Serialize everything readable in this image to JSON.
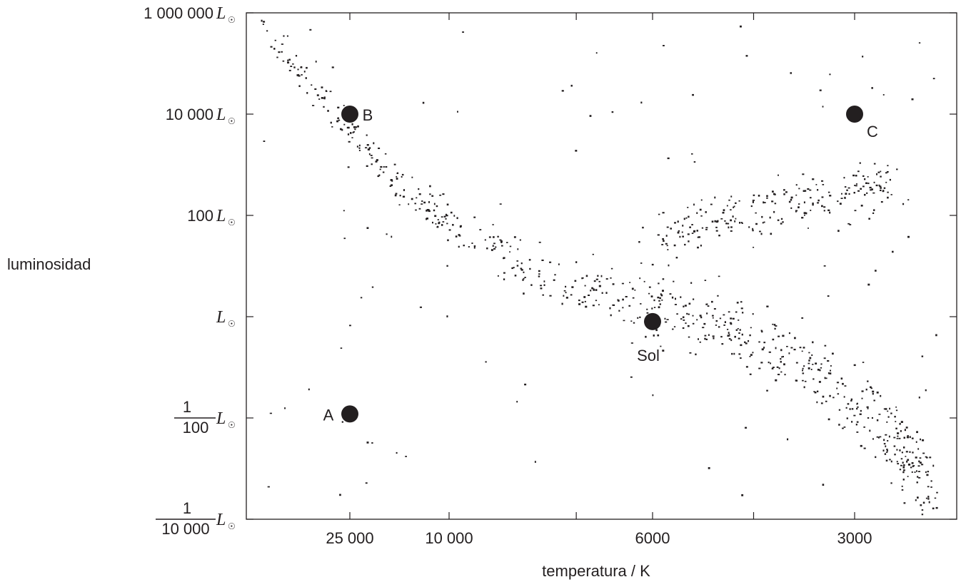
{
  "chart_data": {
    "type": "scatter",
    "xlabel": "temperatura / K",
    "ylabel": "luminosidad",
    "x_scale": "log-reversed",
    "y_scale": "log",
    "xlim": [
      40000,
      2000
    ],
    "ylim": [
      0.0001,
      1000000
    ],
    "x_ticks": [
      {
        "value": 25000,
        "label": "25 000"
      },
      {
        "value": 10000,
        "label": "10 000"
      },
      {
        "value": 6000,
        "label": "6000"
      },
      {
        "value": 3000,
        "label": "3000"
      }
    ],
    "y_ticks": [
      {
        "value": 1000000,
        "number": "1 000 000",
        "unit": "L",
        "symbol": "☉"
      },
      {
        "value": 10000,
        "number": "10 000",
        "unit": "L",
        "symbol": "☉"
      },
      {
        "value": 100,
        "number": "100",
        "unit": "L",
        "symbol": "☉"
      },
      {
        "value": 1,
        "number": "",
        "unit": "L",
        "symbol": "☉"
      },
      {
        "value": 0.01,
        "numerator": "1",
        "denominator": "100",
        "unit": "L",
        "symbol": "☉"
      },
      {
        "value": 0.0001,
        "numerator": "1",
        "denominator": "10 000",
        "unit": "L",
        "symbol": "☉"
      }
    ],
    "grid": false,
    "labeled_stars": [
      {
        "label": "A",
        "temperature": 25000,
        "luminosity": 0.012
      },
      {
        "label": "B",
        "temperature": 25000,
        "luminosity": 10000
      },
      {
        "label": "C",
        "temperature": 3000,
        "luminosity": 10000
      },
      {
        "label": "Sol",
        "temperature": 6000,
        "luminosity": 0.8
      }
    ],
    "background_stars": {
      "main_sequence": {
        "count": 700,
        "from": {
          "temperature": 38000,
          "luminosity": 800000
        },
        "to": {
          "temperature": 2300,
          "luminosity": 0.0002
        }
      },
      "giant_branch": {
        "count": 230,
        "from": {
          "temperature": 5200,
          "luminosity": 60
        },
        "to": {
          "temperature": 2600,
          "luminosity": 250
        }
      },
      "scattered": {
        "count": 95
      }
    },
    "colors": {
      "ink": "#231f20",
      "background": "#ffffff"
    }
  }
}
